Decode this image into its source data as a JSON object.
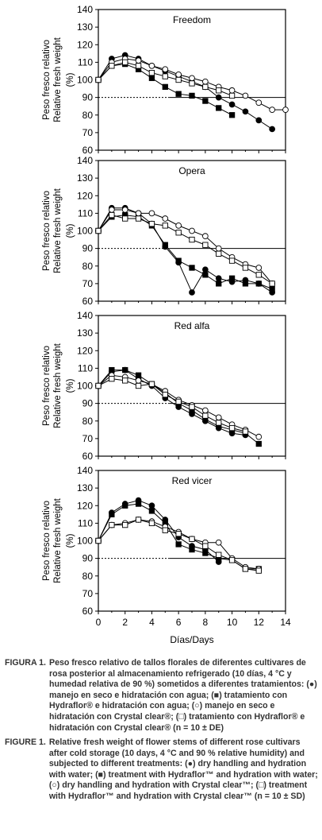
{
  "chart_data": [
    {
      "type": "line",
      "title": "Freedom",
      "ylabel": [
        "Peso fresco relativo",
        "Relative fresh weight"
      ],
      "yunit": "(%)",
      "ylim": [
        60,
        140
      ],
      "yticks": [
        60,
        70,
        80,
        90,
        100,
        110,
        120,
        130,
        140
      ],
      "xlim": [
        0,
        14
      ],
      "reference_line_y": 90,
      "series": [
        {
          "marker": "filled-circle",
          "x": [
            0,
            1,
            2,
            3,
            4,
            5,
            6,
            7,
            8,
            9,
            10,
            11,
            12,
            13
          ],
          "y": [
            100,
            112,
            114,
            112,
            108,
            105,
            102,
            99,
            96,
            90,
            86,
            82,
            77,
            72
          ]
        },
        {
          "marker": "filled-square",
          "x": [
            0,
            1,
            2,
            3,
            4,
            5,
            6,
            7,
            8,
            9,
            10
          ],
          "y": [
            100,
            108,
            109,
            106,
            101,
            96,
            92,
            91,
            88,
            84,
            80
          ]
        },
        {
          "marker": "open-circle",
          "x": [
            0,
            1,
            2,
            3,
            4,
            5,
            6,
            7,
            8,
            9,
            10,
            11,
            12,
            13,
            14
          ],
          "y": [
            100,
            110,
            112,
            111,
            108,
            106,
            103,
            101,
            99,
            96,
            94,
            91,
            87,
            83,
            83
          ]
        },
        {
          "marker": "open-square",
          "x": [
            0,
            1,
            2,
            3,
            4,
            5,
            6,
            7,
            8,
            9,
            10
          ],
          "y": [
            100,
            108,
            110,
            108,
            104,
            102,
            100,
            98,
            96,
            94,
            91
          ]
        }
      ]
    },
    {
      "type": "line",
      "title": "Opera",
      "ylabel": [
        "Peso fresco relativo",
        "Relative fresh weight"
      ],
      "yunit": "(%)",
      "ylim": [
        60,
        140
      ],
      "yticks": [
        60,
        70,
        80,
        90,
        100,
        110,
        120,
        130,
        140
      ],
      "xlim": [
        0,
        14
      ],
      "reference_line_y": 90,
      "series": [
        {
          "marker": "filled-circle",
          "x": [
            0,
            1,
            2,
            3,
            4,
            5,
            6,
            7,
            8,
            9,
            10,
            11,
            12,
            13
          ],
          "y": [
            100,
            113,
            113,
            110,
            104,
            91,
            82,
            65,
            78,
            73,
            71,
            72,
            70,
            65
          ]
        },
        {
          "marker": "filled-square",
          "x": [
            0,
            1,
            2,
            3,
            4,
            5,
            6,
            7,
            8,
            9,
            10,
            11,
            12,
            13
          ],
          "y": [
            100,
            108,
            109,
            108,
            103,
            92,
            83,
            79,
            75,
            70,
            73,
            70,
            70,
            67
          ]
        },
        {
          "marker": "open-circle",
          "x": [
            0,
            1,
            2,
            3,
            4,
            5,
            6,
            7,
            8,
            9,
            10,
            11,
            12,
            13
          ],
          "y": [
            100,
            112,
            112,
            110,
            110,
            107,
            103,
            100,
            97,
            90,
            85,
            81,
            79,
            70
          ]
        },
        {
          "marker": "open-square",
          "x": [
            0,
            1,
            2,
            3,
            4,
            5,
            6,
            7,
            8,
            9,
            10,
            11,
            12,
            13
          ],
          "y": [
            100,
            109,
            107,
            107,
            104,
            103,
            99,
            95,
            92,
            87,
            83,
            79,
            75,
            70
          ]
        }
      ]
    },
    {
      "type": "line",
      "title": "Red alfa",
      "ylabel": [
        "Peso fresco relativo",
        "Relative fresh weight"
      ],
      "yunit": "(%)",
      "ylim": [
        60,
        140
      ],
      "yticks": [
        60,
        70,
        80,
        90,
        100,
        110,
        120,
        130,
        140
      ],
      "xlim": [
        0,
        14
      ],
      "reference_line_y": 90,
      "series": [
        {
          "marker": "filled-circle",
          "x": [
            0,
            1,
            2,
            3,
            4,
            5,
            6,
            7,
            8,
            9,
            10,
            11
          ],
          "y": [
            100,
            108,
            109,
            104,
            100,
            93,
            88,
            84,
            80,
            76,
            73,
            72
          ]
        },
        {
          "marker": "filled-square",
          "x": [
            0,
            1,
            2,
            3,
            4,
            5,
            6,
            7,
            8,
            9,
            10,
            11,
            12
          ],
          "y": [
            100,
            109,
            109,
            106,
            101,
            96,
            90,
            86,
            81,
            77,
            75,
            73,
            67
          ]
        },
        {
          "marker": "open-circle",
          "x": [
            0,
            1,
            2,
            3,
            4,
            5,
            6,
            7,
            8,
            9,
            10,
            11,
            12
          ],
          "y": [
            100,
            106,
            105,
            103,
            101,
            97,
            92,
            89,
            86,
            82,
            78,
            75,
            71
          ]
        },
        {
          "marker": "open-square",
          "x": [
            0,
            1,
            2,
            3,
            4,
            5,
            6,
            7,
            8,
            9,
            10,
            11
          ],
          "y": [
            100,
            104,
            103,
            100,
            101,
            95,
            91,
            88,
            83,
            79,
            76,
            74
          ]
        }
      ]
    },
    {
      "type": "line",
      "title": "Red vicer",
      "ylabel": [
        "Peso fresco relativo",
        "Relative fresh weight"
      ],
      "yunit": "(%)",
      "ylim": [
        60,
        140
      ],
      "yticks": [
        60,
        70,
        80,
        90,
        100,
        110,
        120,
        130,
        140
      ],
      "xlim": [
        0,
        14
      ],
      "xticks": [
        0,
        2,
        4,
        6,
        8,
        10,
        12,
        14
      ],
      "xlabel": "Días/Days",
      "reference_line_y": 90,
      "series": [
        {
          "marker": "filled-circle",
          "x": [
            0,
            1,
            2,
            3,
            4,
            5,
            6,
            7,
            8,
            9
          ],
          "y": [
            100,
            116,
            121,
            123,
            120,
            112,
            102,
            97,
            95,
            88
          ]
        },
        {
          "marker": "filled-square",
          "x": [
            0,
            1,
            2,
            3,
            4,
            5,
            6,
            7,
            8,
            9,
            10,
            11,
            12
          ],
          "y": [
            100,
            115,
            120,
            121,
            117,
            110,
            98,
            95,
            93,
            90,
            89,
            84,
            84
          ]
        },
        {
          "marker": "open-circle",
          "x": [
            0,
            1,
            2,
            3,
            4,
            5,
            6,
            7,
            8,
            9,
            10,
            11,
            12
          ],
          "y": [
            100,
            109,
            110,
            112,
            111,
            108,
            105,
            101,
            99,
            99,
            90,
            85,
            84
          ]
        },
        {
          "marker": "open-square",
          "x": [
            0,
            1,
            2,
            3,
            4,
            5,
            6,
            7,
            8,
            9,
            10,
            11,
            12
          ],
          "y": [
            100,
            109,
            109,
            112,
            110,
            106,
            104,
            101,
            97,
            92,
            89,
            84,
            83
          ]
        }
      ]
    }
  ],
  "caption_es": {
    "label": "FIGURA 1.",
    "text": "Peso fresco relativo de tallos florales de diferentes cultivares de rosa posterior al almacenamiento refrigerado (10 días, 4 °C y humedad relativa de 90 %) sometidos a diferentes tratamientos: (●) manejo en seco e hidratación con agua; (■) tratamiento con Hydraflor® e hidratación con agua; (○) manejo en seco e hidratación con Crystal clear®; (□) tratamiento con Hydraflor® e hidratación con Crystal clear® (n = 10 ± DE)"
  },
  "caption_en": {
    "label": "FIGURE 1.",
    "text": "Relative fresh weight of flower stems of different rose cultivars after cold storage (10 days, 4 °C and 90 % relative humidity) and subjected to different treatments: (●) dry handling and hydration with water; (■) treatment with Hydraflor™ and hydration with water; (○) dry handling and hydration with Crystal clear™; (□) treatment with Hydraflor™ and hydration with Crystal clear™ (n = 10 ± SD)"
  }
}
